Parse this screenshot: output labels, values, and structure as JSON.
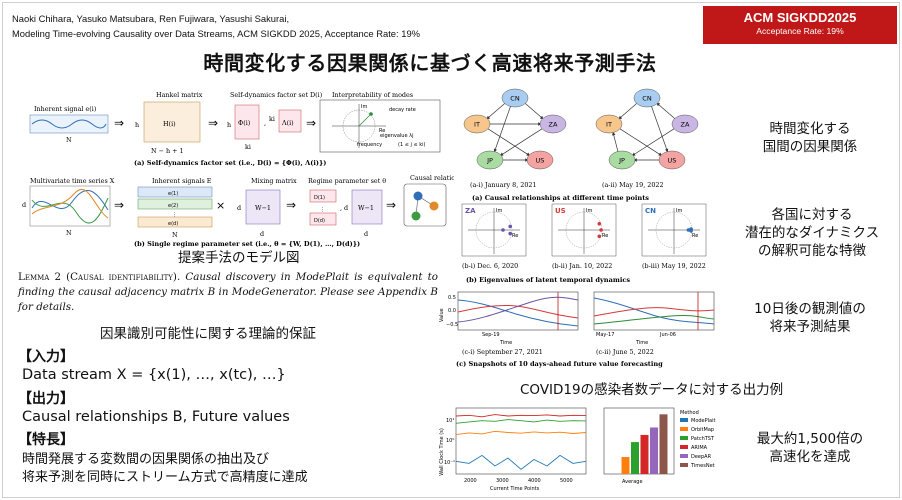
{
  "header": {
    "authors": "Naoki Chihara, Yasuko Matsubara, Ren Fujiwara, Yasushi Sakurai,",
    "venue_line": "Modeling Time-evolving Causality over Data Streams, ACM SIGKDD 2025, Acceptance Rate: 19%"
  },
  "badge": {
    "title": "ACM SIGKDD2025",
    "subtitle": "Acceptance Rate: 19%"
  },
  "title": "時間変化する因果関係に基づく高速将来予測手法",
  "fig_a": {
    "inherent_signal": "Inherent signal e(i)",
    "N": "N",
    "hankel_title": "Hankel matrix",
    "h": "h",
    "hankel_symbol": "H(i)",
    "n_h1": "N − h + 1",
    "sdfs_title": "Self-dynamics factor set D(i)",
    "phi": "Φ(i)",
    "lambda": "Λ(i)",
    "ki": "ki",
    "interp_title": "Interpretability of modes",
    "im": "Im",
    "re": "Re",
    "decay": "decay rate",
    "eigen": "eigenvalue λj",
    "freq": "frequency",
    "range": "(1 ≤ j ≤ ki)",
    "caption": "(a) Self-dynamics factor set (i.e., D(i) = {Φ(i), Λ(i)})"
  },
  "fig_b": {
    "mts": "Multivariate time series X",
    "inherent_signals": "Inherent signals E",
    "e1": "e(1)",
    "e2": "e(2)",
    "ed": "e(d)",
    "mixing": "Mixing matrix",
    "winv": "W−1",
    "regime": "Regime parameter set θ",
    "d1": "D(1)",
    "dd": "D(d)",
    "causal": "Causal relationship B",
    "d": "d",
    "N": "N",
    "caption": "(b) Single regime parameter set (i.e., θ = {W, D(1), …, D(d)})"
  },
  "left": {
    "model_fig_label": "提案手法のモデル図",
    "lemma_label": "Lemma 2 (Causal identifiability).",
    "lemma_text": "Causal discovery in ModePlait is equivalent to finding the causal adjacency matrix B in ModeGenerator. Please see Appendix B for details.",
    "guarantee_label": "因果識別可能性に関する理論的保証",
    "input_head": "【入力】",
    "input_body": "Data stream X = {x(1), …, x(tc), …}",
    "output_head": "【出力】",
    "output_body": "Causal relationships B, Future values",
    "feature_head": "【特長】",
    "feature_body_1": "時間発展する変数間の因果関係の抽出及び",
    "feature_body_2": "将来予測を同時にストリーム方式で高精度に達成"
  },
  "graphs": {
    "nodes": [
      "CN",
      "IT",
      "ZA",
      "JP",
      "US"
    ],
    "cap_i": "(a-i) January 8, 2021",
    "cap_ii": "(a-ii) May 19, 2022",
    "caption": "(a) Causal relationships at different time points",
    "desc": "時間変化する\n国間の因果関係"
  },
  "eigen": {
    "panels": [
      {
        "label": "ZA",
        "color": "#6a55a8",
        "cap": "(b-i) Dec. 6, 2020"
      },
      {
        "label": "US",
        "color": "#d43a3a",
        "cap": "(b-ii) Jan. 10, 2022"
      },
      {
        "label": "CN",
        "color": "#2f6fb5",
        "cap": "(b-iii) May 19, 2022"
      }
    ],
    "im": "Im",
    "re": "Re",
    "caption": "(b) Eigenvalues of latent temporal dynamics",
    "desc": "各国に対する\n潜在的なダイナミクス\nの解釈可能な特徴"
  },
  "forecast": {
    "ylabel": "Value",
    "xlabel": "Time",
    "t1": "Sep-19",
    "t2a": "May-17",
    "t2b": "Jun-06",
    "y_hi": "0.5",
    "y_mid": "0.0",
    "y_lo": "−0.5",
    "cap_i": "(c-i) September 27, 2021",
    "cap_ii": "(c-ii) June 5, 2022",
    "caption": "(c) Snapshots of 10 days-ahead future value forecasting",
    "desc": "10日後の観測値の\n将来予測結果"
  },
  "covid_label": "COVID19の感染者数データに対する出力例",
  "speed": {
    "ylabel": "Wall Clock Time (s)",
    "xlabel": "Current Time Points",
    "ticks_x": [
      "2000",
      "3000",
      "4000",
      "5000"
    ],
    "ticks_y": [
      "10¹",
      "10⁰",
      "10⁻¹"
    ],
    "bar_xlabel": "Average",
    "legend_title": "Method",
    "desc": "最大約1,500倍の\n高速化を達成"
  },
  "chart_data": [
    {
      "type": "bar",
      "title": "",
      "xlabel": "Average",
      "ylabel": "",
      "scale": "log",
      "categories": [
        "ModePlait",
        "OrbitMap",
        "PatchTST",
        "ARIMA",
        "DeepAR",
        "TimesNet"
      ],
      "values": [
        0.01,
        0.08,
        0.5,
        1.2,
        3,
        15
      ],
      "colors": [
        "#1f77b4",
        "#ff7f0e",
        "#2ca02c",
        "#d62728",
        "#9467bd",
        "#8c564b"
      ],
      "ylim": [
        0.01,
        20
      ]
    },
    {
      "type": "line",
      "title": "",
      "xlabel": "Current Time Points",
      "ylabel": "Wall Clock Time (s)",
      "scale": "log",
      "x": [
        1800,
        2200,
        2600,
        3000,
        3400,
        3800,
        4200,
        4600,
        5000,
        5400,
        5800
      ],
      "series": [
        {
          "values": [
            0.3,
            0.25,
            0.5,
            0.2,
            0.4,
            0.15,
            0.35,
            0.2,
            0.5,
            0.25,
            0.3
          ],
          "color": "#1f77b4"
        },
        {
          "values": [
            3,
            3.5,
            3.2,
            4,
            3.6,
            3.4,
            3.8,
            3.5,
            3.7,
            3.3,
            3.6
          ],
          "color": "#ff7f0e"
        },
        {
          "values": [
            8,
            9,
            10,
            9.5,
            11,
            10,
            9,
            10.5,
            9.5,
            10,
            9.8
          ],
          "color": "#2ca02c"
        },
        {
          "values": [
            15,
            16,
            14,
            17,
            15,
            16,
            15.5,
            16.5,
            15,
            16,
            15.5
          ],
          "color": "#d62728"
        }
      ],
      "ylim": [
        0.1,
        30
      ]
    }
  ]
}
